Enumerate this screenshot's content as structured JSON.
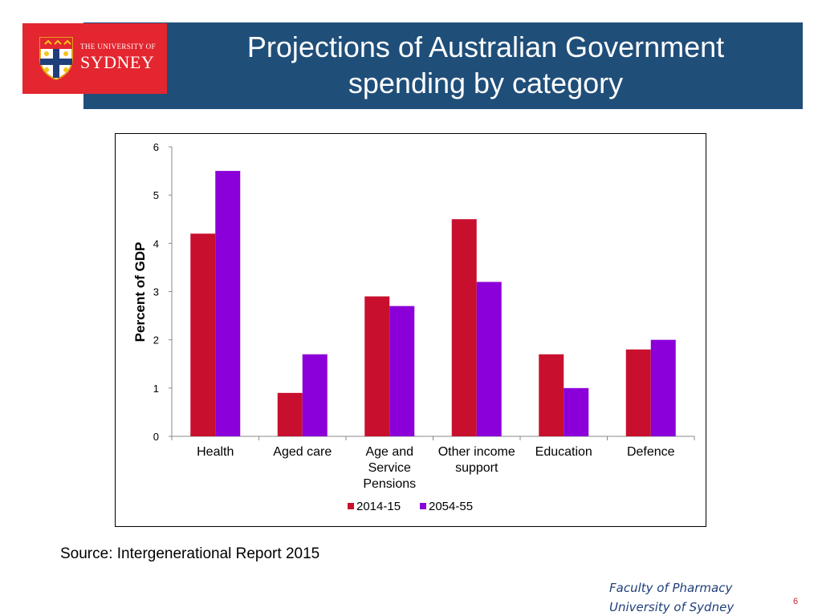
{
  "slide": {
    "title_line1": "Projections of Australian Government",
    "title_line2": "spending by category",
    "source": "Source: Intergenerational Report 2015",
    "footer_line1": "Faculty of Pharmacy",
    "footer_line2": "University of Sydney",
    "page_number": "6"
  },
  "logo": {
    "line1": "THE UNIVERSITY OF",
    "line2": "SYDNEY"
  },
  "colors": {
    "header": "#1f4e79",
    "logo_bg": "#e3262f",
    "series_2014": "#c8102e",
    "series_2054": "#8b00d8"
  },
  "chart_data": {
    "type": "bar",
    "categories": [
      [
        "Health"
      ],
      [
        "Aged care"
      ],
      [
        "Age and",
        "Service",
        "Pensions"
      ],
      [
        "Other income",
        "support"
      ],
      [
        "Education"
      ],
      [
        "Defence"
      ]
    ],
    "series": [
      {
        "name": "2014-15",
        "values": [
          4.2,
          0.9,
          2.9,
          4.5,
          1.7,
          1.8
        ]
      },
      {
        "name": "2054-55",
        "values": [
          5.5,
          1.7,
          2.7,
          3.2,
          1.0,
          2.0
        ]
      }
    ],
    "ylabel": "Percent of GDP",
    "ylim": [
      0,
      6
    ],
    "yticks": [
      "0",
      "1",
      "2",
      "3",
      "4",
      "5",
      "6"
    ],
    "grid": false,
    "legend_position": "bottom"
  }
}
